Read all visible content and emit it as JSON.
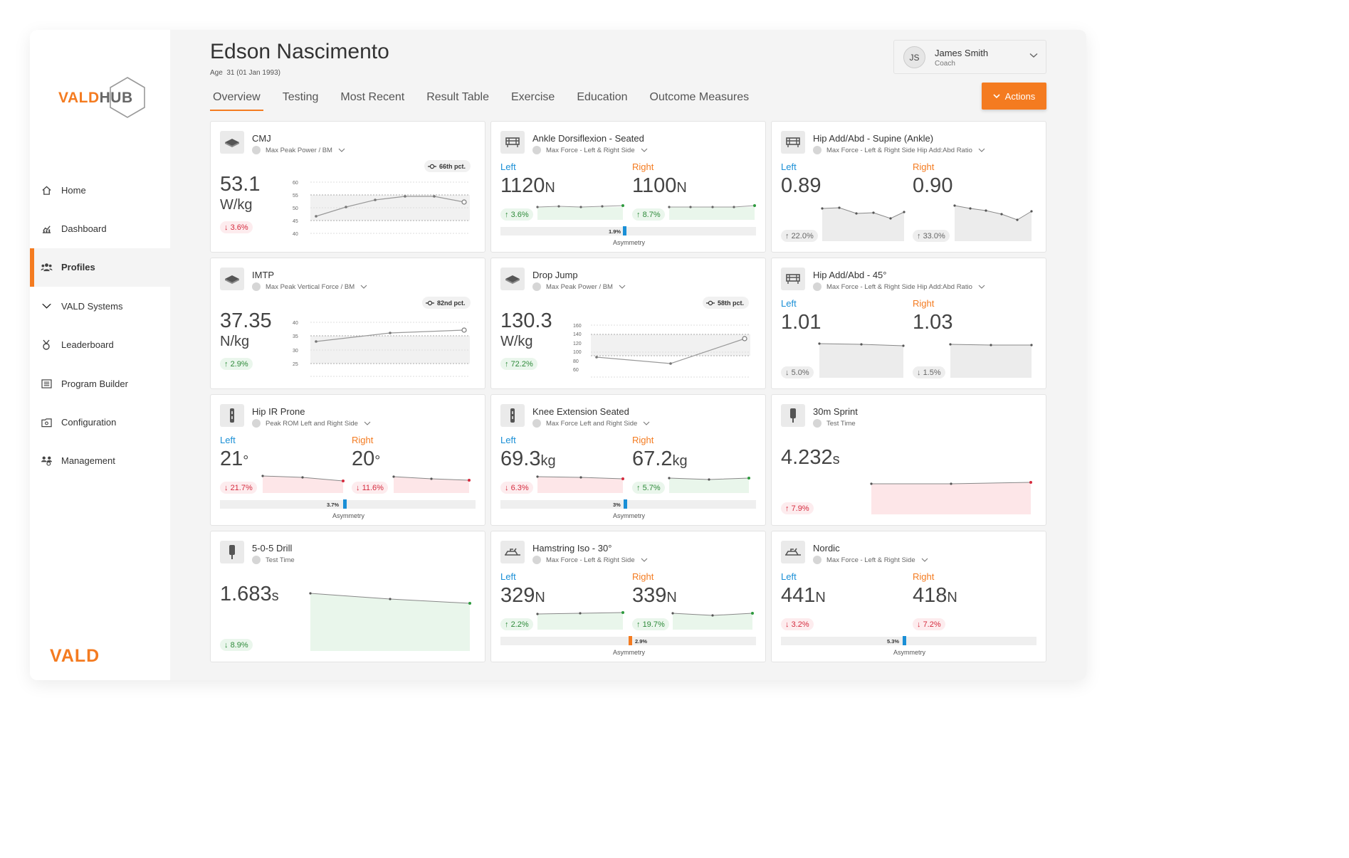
{
  "brand": {
    "logo_left": "VALD",
    "logo_right": "HUB",
    "footer_logo": "VALD",
    "accent": "#f47b20"
  },
  "sidebar": {
    "items": [
      {
        "label": "Home",
        "icon": "home-icon"
      },
      {
        "label": "Dashboard",
        "icon": "dashboard-icon"
      },
      {
        "label": "Profiles",
        "icon": "profiles-icon",
        "active": true
      },
      {
        "label": "VALD Systems",
        "icon": "vald-systems-icon"
      },
      {
        "label": "Leaderboard",
        "icon": "leaderboard-icon"
      },
      {
        "label": "Program Builder",
        "icon": "program-builder-icon"
      },
      {
        "label": "Configuration",
        "icon": "configuration-icon"
      },
      {
        "label": "Management",
        "icon": "management-icon"
      }
    ]
  },
  "header": {
    "name": "Edson Nascimento",
    "age_label": "Age",
    "age_value": "31 (01 Jan 1993)",
    "tabs": [
      "Overview",
      "Testing",
      "Most Recent",
      "Result Table",
      "Exercise",
      "Education",
      "Outcome Measures"
    ],
    "active_tab": "Overview"
  },
  "user": {
    "initials": "JS",
    "name": "James Smith",
    "role": "Coach"
  },
  "actions_label": "Actions",
  "cards": {
    "cmj": {
      "title": "CMJ",
      "metric": "Max Peak Power / BM",
      "percentile": "66th pct.",
      "value": "53.1",
      "unit": "W/kg",
      "change": "3.6%",
      "yticks": [
        "60",
        "55",
        "50",
        "45",
        "40"
      ]
    },
    "ankle": {
      "title": "Ankle Dorsiflexion - Seated",
      "metric": "Max Force - Left & Right Side",
      "left_label": "Left",
      "right_label": "Right",
      "left_value": "1120",
      "left_unit": "N",
      "right_value": "1100",
      "right_unit": "N",
      "left_change": "3.6%",
      "right_change": "8.7%",
      "asym_pct": "1.9%",
      "asym_label": "Asymmetry"
    },
    "hip_supine": {
      "title": "Hip Add/Abd - Supine (Ankle)",
      "metric": "Max Force - Left & Right Side Hip Add:Abd Ratio",
      "left_label": "Left",
      "right_label": "Right",
      "left_value": "0.89",
      "right_value": "0.90",
      "left_change": "22.0%",
      "right_change": "33.0%"
    },
    "imtp": {
      "title": "IMTP",
      "metric": "Max Peak Vertical Force / BM",
      "percentile": "82nd pct.",
      "value": "37.35",
      "unit": "N/kg",
      "change": "2.9%",
      "yticks": [
        "40",
        "35",
        "30",
        "25"
      ]
    },
    "drop_jump": {
      "title": "Drop Jump",
      "metric": "Max Peak Power / BM",
      "percentile": "58th pct.",
      "value": "130.3",
      "unit": "W/kg",
      "change": "72.2%",
      "yticks": [
        "160",
        "140",
        "120",
        "100",
        "80",
        "60"
      ]
    },
    "hip_45": {
      "title": "Hip Add/Abd - 45°",
      "metric": "Max Force - Left & Right Side Hip Add:Abd Ratio",
      "left_label": "Left",
      "right_label": "Right",
      "left_value": "1.01",
      "right_value": "1.03",
      "left_change": "5.0%",
      "right_change": "1.5%"
    },
    "hip_ir": {
      "title": "Hip IR Prone",
      "metric": "Peak ROM Left and Right Side",
      "left_label": "Left",
      "right_label": "Right",
      "left_value": "21",
      "left_unit": "°",
      "right_value": "20",
      "right_unit": "°",
      "left_change": "21.7%",
      "right_change": "11.6%",
      "asym_pct": "3.7%",
      "asym_label": "Asymmetry"
    },
    "knee_ext": {
      "title": "Knee Extension Seated",
      "metric": "Max Force Left and Right Side",
      "left_label": "Left",
      "right_label": "Right",
      "left_value": "69.3",
      "left_unit": "kg",
      "right_value": "67.2",
      "right_unit": "kg",
      "left_change": "6.3%",
      "right_change": "5.7%",
      "asym_pct": "3%",
      "asym_label": "Asymmetry"
    },
    "sprint": {
      "title": "30m Sprint",
      "metric": "Test Time",
      "value": "4.232",
      "unit": "s",
      "change": "7.9%"
    },
    "drill": {
      "title": "5-0-5 Drill",
      "metric": "Test Time",
      "value": "1.683",
      "unit": "s",
      "change": "8.9%"
    },
    "hamstring": {
      "title": "Hamstring Iso - 30°",
      "metric": "Max Force - Left & Right Side",
      "left_label": "Left",
      "right_label": "Right",
      "left_value": "329",
      "left_unit": "N",
      "right_value": "339",
      "right_unit": "N",
      "left_change": "2.2%",
      "right_change": "19.7%",
      "asym_pct": "2.9%",
      "asym_label": "Asymmetry"
    },
    "nordic": {
      "title": "Nordic",
      "metric": "Max Force - Left & Right Side",
      "left_label": "Left",
      "right_label": "Right",
      "left_value": "441",
      "left_unit": "N",
      "right_value": "418",
      "right_unit": "N",
      "left_change": "3.2%",
      "right_change": "7.2%",
      "asym_pct": "5.3%",
      "asym_label": "Asymmetry"
    }
  },
  "colors": {
    "left": "#1a8fd6",
    "right": "#f47b20",
    "up_red": "#d52b3e",
    "good_green": "#2e8a3a",
    "asym_blue": "#1a8fd6",
    "asym_orange": "#f47b20"
  }
}
